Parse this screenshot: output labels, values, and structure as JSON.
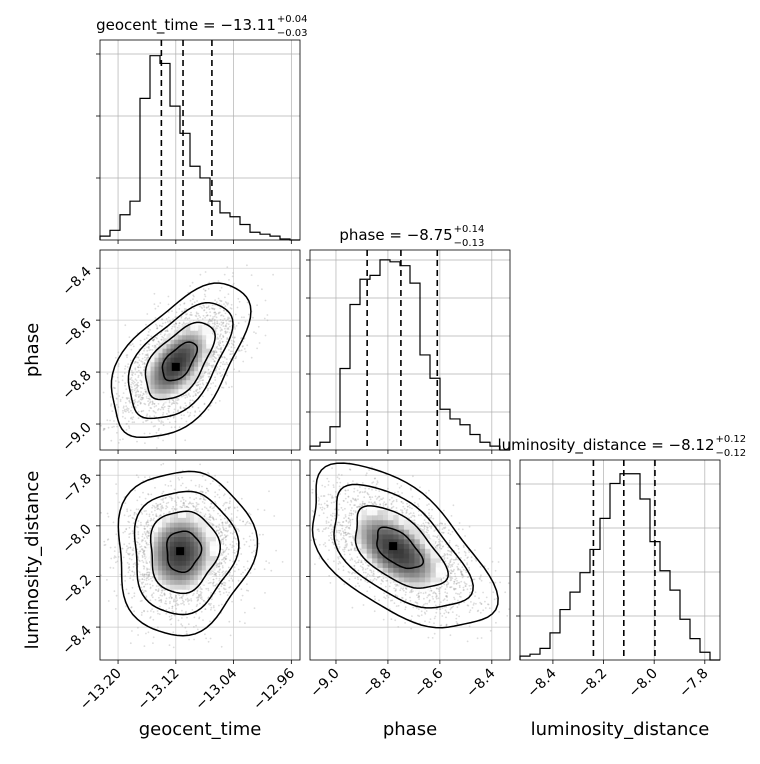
{
  "chart_data": {
    "type": "corner",
    "parameters": [
      {
        "name": "geocent_time",
        "label": "geocent_time",
        "range": [
          -13.225,
          -12.948
        ],
        "ticks": [
          -13.2,
          -13.12,
          -13.04,
          -12.96
        ],
        "tick_labels": [
          "−13.20",
          "−13.12",
          "−13.04",
          "−12.96"
        ],
        "title_prefix": "geocent_time = −13.11",
        "title_plus": "+0.04",
        "title_minus": "−0.03",
        "median": -13.11,
        "quantiles": [
          -13.14,
          -13.11,
          -13.07
        ],
        "hist": [
          0.02,
          0.05,
          0.13,
          0.2,
          0.73,
          0.95,
          0.91,
          0.69,
          0.55,
          0.38,
          0.32,
          0.2,
          0.14,
          0.12,
          0.08,
          0.04,
          0.03,
          0.02,
          0.005,
          0.0
        ],
        "hist_max_ticks": [
          0.31,
          0.62,
          0.93
        ]
      },
      {
        "name": "phase",
        "label": "phase",
        "range": [
          -9.1,
          -8.33
        ],
        "ticks": [
          -9.0,
          -8.8,
          -8.6,
          -8.4
        ],
        "tick_labels": [
          "−9.0",
          "−8.8",
          "−8.6",
          "−8.4"
        ],
        "y_ticks": [
          -8.4,
          -8.6,
          -8.8,
          -9.0
        ],
        "y_tick_labels": [
          "−8.4",
          "−8.6",
          "−8.8",
          "−9.0"
        ],
        "title_prefix": "phase = −8.75",
        "title_plus": "+0.14",
        "title_minus": "−0.13",
        "median": -8.75,
        "quantiles": [
          -8.88,
          -8.75,
          -8.61
        ],
        "hist": [
          0.02,
          0.04,
          0.12,
          0.42,
          0.75,
          0.88,
          0.9,
          0.98,
          0.97,
          0.95,
          0.86,
          0.49,
          0.37,
          0.21,
          0.16,
          0.13,
          0.08,
          0.04,
          0.02,
          0.0
        ],
        "hist_max_ticks": [
          0.19,
          0.38,
          0.57,
          0.76,
          0.95
        ]
      },
      {
        "name": "luminosity_distance",
        "label": "luminosity_distance",
        "range": [
          -8.53,
          -7.74
        ],
        "ticks": [
          -8.4,
          -8.2,
          -8.0,
          -7.8
        ],
        "tick_labels": [
          "−8.4",
          "−8.2",
          "−8.0",
          "−7.8"
        ],
        "y_ticks": [
          -7.8,
          -8.0,
          -8.2,
          -8.4
        ],
        "y_tick_labels": [
          "−7.8",
          "−8.0",
          "−8.2",
          "−8.4"
        ],
        "title_prefix": "luminosity_distance = −8.12",
        "title_plus": "+0.12",
        "title_minus": "−0.12",
        "median": -8.12,
        "quantiles": [
          -8.24,
          -8.12,
          -7.997
        ],
        "hist": [
          0.02,
          0.03,
          0.06,
          0.14,
          0.26,
          0.35,
          0.45,
          0.57,
          0.73,
          0.91,
          0.96,
          0.96,
          0.83,
          0.61,
          0.46,
          0.36,
          0.21,
          0.11,
          0.04,
          0.0
        ],
        "hist_max_ticks": [
          0.22,
          0.44,
          0.66,
          0.88
        ]
      }
    ],
    "pairs": [
      {
        "x": "geocent_time",
        "y": "phase",
        "center": [
          -13.115,
          -8.76
        ],
        "sd": [
          0.035,
          0.11
        ],
        "corr": 0.55,
        "peak_shift": [
          -0.005,
          -0.02
        ]
      },
      {
        "x": "geocent_time",
        "y": "luminosity_distance",
        "center": [
          -13.11,
          -8.1
        ],
        "sd": [
          0.035,
          0.12
        ],
        "corr": 0.05,
        "peak_shift": [
          -0.004,
          0.0
        ]
      },
      {
        "x": "phase",
        "y": "luminosity_distance",
        "center": [
          -8.76,
          -8.09
        ],
        "sd": [
          0.13,
          0.12
        ],
        "corr": -0.55,
        "peak_shift": [
          -0.02,
          0.01
        ]
      }
    ],
    "contour_levels_sigma": [
      0.5,
      1.0,
      1.5,
      2.0
    ],
    "grid": true,
    "color": "#000000",
    "scatter_color": "#9a9a9a"
  }
}
